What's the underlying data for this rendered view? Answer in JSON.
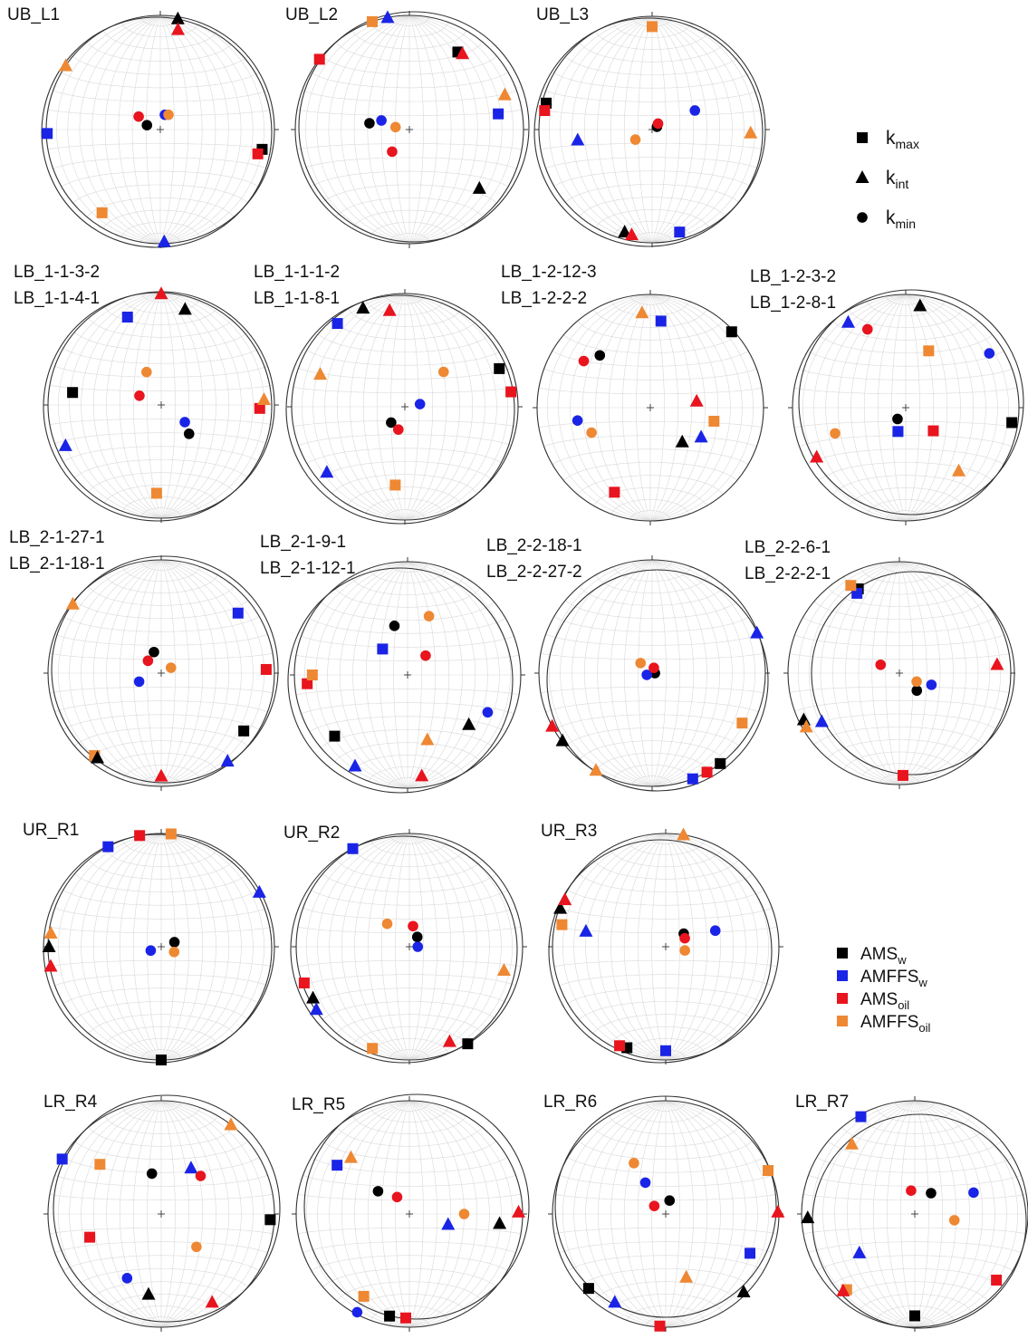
{
  "legend": {
    "axes": [
      {
        "symbol": "square",
        "label": "k",
        "sub": "max"
      },
      {
        "symbol": "triangle",
        "label": "k",
        "sub": "int"
      },
      {
        "symbol": "circle",
        "label": "k",
        "sub": "min"
      }
    ],
    "series": [
      {
        "name": "AMS",
        "sub": "w",
        "color": "#000000"
      },
      {
        "name": "AMFFS",
        "sub": "w",
        "color": "#1a24e6"
      },
      {
        "name": "AMS",
        "sub": "oil",
        "color": "#e8141e"
      },
      {
        "name": "AMFFS",
        "sub": "oil",
        "color": "#ee8833"
      }
    ]
  },
  "chart_data": [
    {
      "type": "stereonet",
      "title": [
        "UB_L1"
      ],
      "series": [
        [
          [
            101,
            10
          ],
          [
            9,
            2
          ],
          [
            288,
            80
          ]
        ],
        [
          [
            268,
            1
          ],
          [
            178,
            2
          ],
          [
            17,
            79
          ]
        ],
        [
          [
            104,
            13
          ],
          [
            10,
            12
          ],
          [
            301,
            72
          ]
        ],
        [
          [
            215,
            12
          ],
          [
            304,
            0
          ],
          [
            29,
            78
          ]
        ]
      ]
    },
    {
      "type": "stereonet",
      "title": [
        "UB_L2"
      ],
      "series": [
        [
          [
            32,
            21
          ],
          [
            130,
            21
          ],
          [
            279,
            61
          ]
        ],
        [
          [
            80,
            22
          ],
          [
            349,
            0
          ],
          [
            288,
            69
          ]
        ],
        [
          [
            308,
            0
          ],
          [
            35,
            20
          ],
          [
            218,
            70
          ]
        ],
        [
          [
            341,
            0
          ],
          [
            70,
            12
          ],
          [
            280,
            80
          ]
        ]
      ]
    },
    {
      "type": "stereonet",
      "title": [
        "UB_L3"
      ],
      "series": [
        [
          [
            284,
            4
          ],
          [
            195,
            7
          ],
          [
            60,
            86
          ]
        ],
        [
          [
            165,
            7
          ],
          [
            262,
            34
          ],
          [
            66,
            56
          ]
        ],
        [
          [
            280,
            4
          ],
          [
            191,
            6
          ],
          [
            45,
            84
          ]
        ],
        [
          [
            0,
            10
          ],
          [
            92,
            14
          ],
          [
            239,
            76
          ]
        ]
      ]
    },
    {
      "type": "stereonet",
      "title": [
        "LB_1-1-3-2",
        "LB_1-1-4-1"
      ],
      "series": [
        [
          [
            278,
            22
          ],
          [
            14,
            14
          ],
          [
            136,
            61
          ]
        ],
        [
          [
            339,
            18
          ],
          [
            247,
            9
          ],
          [
            126,
            69
          ]
        ],
        [
          [
            92,
            14
          ],
          [
            0,
            2
          ],
          [
            293,
            73
          ]
        ],
        [
          [
            183,
            23
          ],
          [
            87,
            10
          ],
          [
            336,
            64
          ]
        ]
      ]
    },
    {
      "type": "stereonet",
      "title": [
        "LB_1-1-1-2",
        "LB_1-1-8-1"
      ],
      "series": [
        [
          [
            68,
            11
          ],
          [
            337,
            6
          ],
          [
            221,
            75
          ]
        ],
        [
          [
            321,
            6
          ],
          [
            230,
            11
          ],
          [
            80,
            79
          ]
        ],
        [
          [
            82,
            6
          ],
          [
            351,
            15
          ],
          [
            196,
            73
          ]
        ],
        [
          [
            187,
            31
          ],
          [
            291,
            21
          ],
          [
            48,
            52
          ]
        ]
      ]
    },
    {
      "type": "stereonet",
      "title": [
        "LB_1-2-12-3",
        "LB_1-2-2-2"
      ],
      "series": [
        [
          [
            47,
            2
          ],
          [
            137,
            56
          ],
          [
            316,
            36
          ]
        ],
        [
          [
            7,
            24
          ],
          [
            120,
            47
          ],
          [
            260,
            35
          ]
        ],
        [
          [
            203,
            20
          ],
          [
            82,
            56
          ],
          [
            305,
            29
          ]
        ],
        [
          [
            102,
            42
          ],
          [
            355,
            17
          ],
          [
            247,
            43
          ]
        ]
      ]
    },
    {
      "type": "stereonet",
      "title": [
        "LB_1-2-3-2",
        "LB_1-2-8-1"
      ],
      "series": [
        [
          [
            98,
            6
          ],
          [
            8,
            10
          ],
          [
            216,
            80
          ]
        ],
        [
          [
            198,
            72
          ],
          [
            326,
            10
          ],
          [
            57,
            13
          ]
        ],
        [
          [
            130,
            64
          ],
          [
            241,
            11
          ],
          [
            334,
            24
          ]
        ],
        [
          [
            22,
            45
          ],
          [
            140,
            28
          ],
          [
            250,
            34
          ]
        ]
      ]
    },
    {
      "type": "stereonet",
      "title": [
        "LB_2-1-27-1",
        "LB_2-1-18-1"
      ],
      "series": [
        [
          [
            125,
            12
          ],
          [
            217,
            7
          ],
          [
            341,
            74
          ]
        ],
        [
          [
            52,
            15
          ],
          [
            143,
            3
          ],
          [
            249,
            73
          ]
        ],
        [
          [
            88,
            8
          ],
          [
            180,
            10
          ],
          [
            313,
            77
          ]
        ],
        [
          [
            219,
            7
          ],
          [
            308,
            1
          ],
          [
            61,
            82
          ]
        ]
      ]
    },
    {
      "type": "stereonet",
      "title": [
        "LB_2-1-9-1",
        "LB_2-1-12-1"
      ],
      "series": [
        [
          [
            230,
            17
          ],
          [
            129,
            31
          ],
          [
            345,
            53
          ]
        ],
        [
          [
            316,
            64
          ],
          [
            210,
            8
          ],
          [
            115,
            23
          ]
        ],
        [
          [
            265,
            12
          ],
          [
            172,
            11
          ],
          [
            43,
            71
          ]
        ],
        [
          [
            270,
            17
          ],
          [
            163,
            40
          ],
          [
            20,
            44
          ]
        ]
      ]
    },
    {
      "type": "stereonet",
      "title": [
        "LB_2-2-18-1",
        "LB_2-2-27-2"
      ],
      "series": [
        [
          [
            143,
            0
          ],
          [
            233,
            1
          ],
          [
            90,
            88
          ]
        ],
        [
          [
            159,
            0
          ],
          [
            69,
            1
          ],
          [
            252,
            86
          ]
        ],
        [
          [
            151,
            0
          ],
          [
            242,
            0
          ],
          [
            18,
            86
          ]
        ],
        [
          [
            119,
            10
          ],
          [
            210,
            1
          ],
          [
            311,
            79
          ]
        ]
      ]
    },
    {
      "type": "stereonet",
      "title": [
        "LB_2-2-6-1",
        "LB_2-2-2-1"
      ],
      "series": [
        [
          [
            334,
            17
          ],
          [
            244,
            5
          ],
          [
            135,
            72
          ]
        ],
        [
          [
            332,
            20
          ],
          [
            238,
            19
          ],
          [
            110,
            65
          ]
        ],
        [
          [
            178,
            9
          ],
          [
            85,
            13
          ],
          [
            294,
            75
          ]
        ],
        [
          [
            331,
            11
          ],
          [
            240,
            4
          ],
          [
            116,
            76
          ]
        ]
      ]
    },
    {
      "type": "stereonet",
      "title": [
        "UR_R1"
      ],
      "series": [
        [
          [
            180,
            0
          ],
          [
            270,
            1
          ],
          [
            71,
            80
          ]
        ],
        [
          [
            332,
            0
          ],
          [
            61,
            1
          ],
          [
            250,
            82
          ]
        ],
        [
          [
            349,
            0
          ],
          [
            260,
            1
          ],
          null
        ],
        [
          [
            5,
            0
          ],
          [
            277,
            2
          ],
          [
            112,
            80
          ]
        ]
      ]
    },
    {
      "type": "stereonet",
      "title": [
        "UR_R2"
      ],
      "series": [
        [
          [
            149,
            0
          ],
          [
            242,
            4
          ],
          [
            39,
            81
          ]
        ],
        [
          [
            330,
            0
          ],
          [
            236,
            1
          ],
          [
            90,
            84
          ]
        ],
        [
          [
            251,
            2
          ],
          [
            157,
            10
          ],
          [
            10,
            75
          ]
        ],
        [
          [
            200,
            5
          ],
          [
            104,
            15
          ],
          [
            316,
            67
          ]
        ]
      ]
    },
    {
      "type": "stereonet",
      "title": [
        "UR_R3"
      ],
      "series": [
        [
          [
            201,
            5
          ],
          [
            290,
            1
          ],
          [
            54,
            74
          ]
        ],
        [
          [
            180,
            9
          ],
          [
            281,
            29
          ],
          [
            72,
            52
          ]
        ],
        [
          [
            205,
            4
          ],
          [
            295,
            2
          ],
          [
            66,
            75
          ]
        ],
        [
          [
            282,
            7
          ],
          [
            9,
            0
          ],
          [
            101,
            76
          ]
        ]
      ]
    },
    {
      "type": "stereonet",
      "title": [
        "LR_R4"
      ],
      "series": [
        [
          [
            93,
            4
          ],
          [
            189,
            29
          ],
          [
            347,
            60
          ]
        ],
        [
          [
            299,
            0
          ],
          [
            33,
            50
          ],
          [
            208,
            36
          ]
        ],
        [
          [
            252,
            34
          ],
          [
            150,
            11
          ],
          [
            46,
            50
          ]
        ],
        [
          [
            309,
            31
          ],
          [
            38,
            0
          ],
          [
            133,
            55
          ]
        ]
      ]
    },
    {
      "type": "stereonet",
      "title": [
        "LR_R5"
      ],
      "series": [
        [
          [
            191,
            9
          ],
          [
            96,
            21
          ],
          [
            306,
            62
          ]
        ],
        [
          [
            304,
            24
          ],
          [
            105,
            61
          ],
          [
            208,
            2
          ]
        ],
        [
          [
            182,
            9
          ],
          [
            89,
            4
          ],
          [
            324,
            75
          ]
        ],
        [
          [
            209,
            18
          ],
          [
            314,
            29
          ],
          [
            90,
            50
          ]
        ]
      ]
    },
    {
      "type": "stereonet",
      "title": [
        "LR_R6"
      ],
      "series": [
        [
          [
            226,
            6
          ],
          [
            135,
            3
          ],
          [
            16,
            80
          ]
        ],
        [
          [
            115,
            19
          ],
          [
            210,
            11
          ],
          [
            327,
            63
          ]
        ],
        [
          [
            183,
            1
          ],
          [
            89,
            1
          ],
          [
            305,
            80
          ]
        ],
        [
          [
            67,
            2
          ],
          [
            162,
            41
          ],
          [
            328,
            46
          ]
        ]
      ]
    },
    {
      "type": "stereonet",
      "title": [
        "LR_R7"
      ],
      "series": [
        [
          [
            180,
            11
          ],
          [
            268,
            6
          ],
          [
            38,
            71
          ]
        ],
        [
          [
            331,
            2
          ],
          [
            235,
            40
          ],
          [
            70,
            44
          ]
        ],
        [
          [
            129,
            8
          ],
          [
            223,
            8
          ],
          [
            351,
            73
          ]
        ],
        [
          [
            222,
            11
          ],
          [
            318,
            18
          ],
          [
            99,
            61
          ]
        ]
      ]
    }
  ]
}
